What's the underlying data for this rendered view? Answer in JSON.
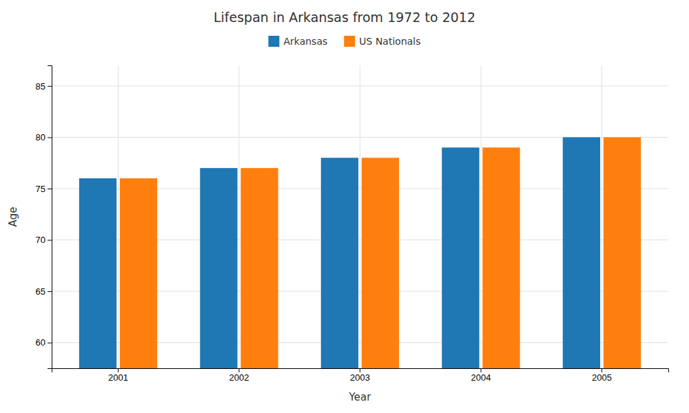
{
  "chart_data": {
    "type": "bar",
    "title": "Lifespan in Arkansas from 1972 to 2012",
    "xlabel": "Year",
    "ylabel": "Age",
    "categories": [
      "2001",
      "2002",
      "2003",
      "2004",
      "2005"
    ],
    "series": [
      {
        "name": "Arkansas",
        "values": [
          76,
          77,
          78,
          79,
          80
        ]
      },
      {
        "name": "US Nationals",
        "values": [
          76,
          77,
          78,
          79,
          80
        ]
      }
    ],
    "ylim": [
      57.5,
      87
    ],
    "yticks": [
      60,
      65,
      70,
      75,
      80,
      85
    ],
    "grid": true,
    "legend": "top"
  }
}
